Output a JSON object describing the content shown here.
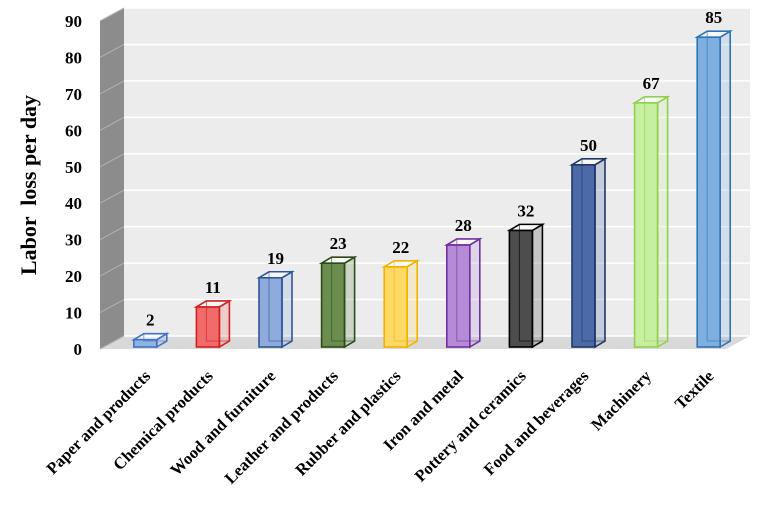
{
  "chart_data": {
    "type": "bar",
    "ylabel": "Labor  loss per day",
    "ylim": [
      0,
      90
    ],
    "yticks": [
      0,
      10,
      20,
      30,
      40,
      50,
      60,
      70,
      80,
      90
    ],
    "grid": true,
    "categories": [
      "Paper and products",
      "Chemical products",
      "Wood and furniture",
      "Leather and products",
      "Rubber and plastics",
      "Iron and metal",
      "Pottery and ceramics",
      "Food and beverages",
      "Machinery",
      "Textile"
    ],
    "values": [
      2,
      11,
      19,
      23,
      22,
      28,
      32,
      50,
      67,
      85
    ],
    "colors": [
      {
        "fill": "#8EB4E3",
        "edge": "#4472C4"
      },
      {
        "fill": "#F16B6B",
        "edge": "#D21F1F"
      },
      {
        "fill": "#8FAADC",
        "edge": "#2F5597"
      },
      {
        "fill": "#6B8E4E",
        "edge": "#2D4A1A"
      },
      {
        "fill": "#FFD966",
        "edge": "#F0B400"
      },
      {
        "fill": "#B58BD8",
        "edge": "#7030A0"
      },
      {
        "fill": "#4D4D4D",
        "edge": "#000000"
      },
      {
        "fill": "#4D6AA8",
        "edge": "#203864"
      },
      {
        "fill": "#C6EFA0",
        "edge": "#92D050"
      },
      {
        "fill": "#7FAEE0",
        "edge": "#2E75B6"
      }
    ]
  }
}
